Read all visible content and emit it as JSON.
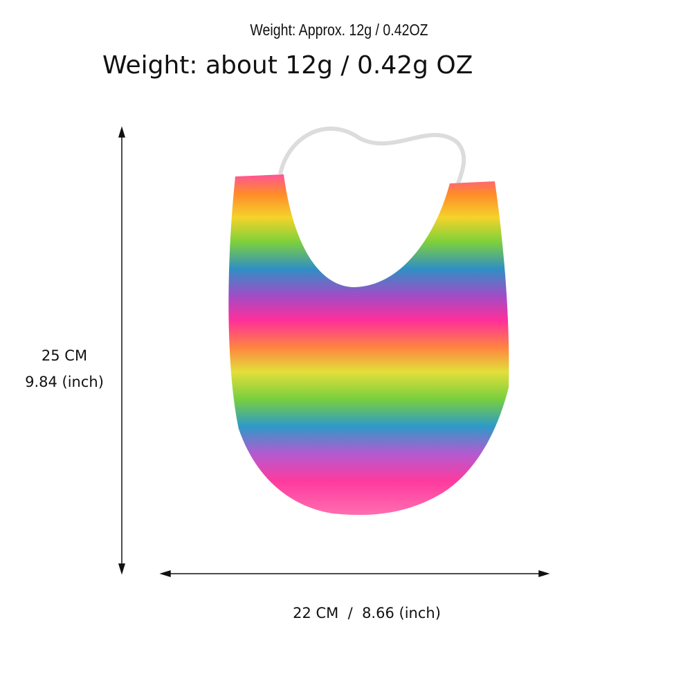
{
  "header": {
    "subtitle": "Weight: Approx. 12g / 0.42OZ",
    "title": "Weight: about 12g / 0.42g OZ"
  },
  "dimensions": {
    "height_cm": "25 CM",
    "height_in": "9.84 (inch)",
    "width": "22 CM  /  8.66 (inch)"
  }
}
